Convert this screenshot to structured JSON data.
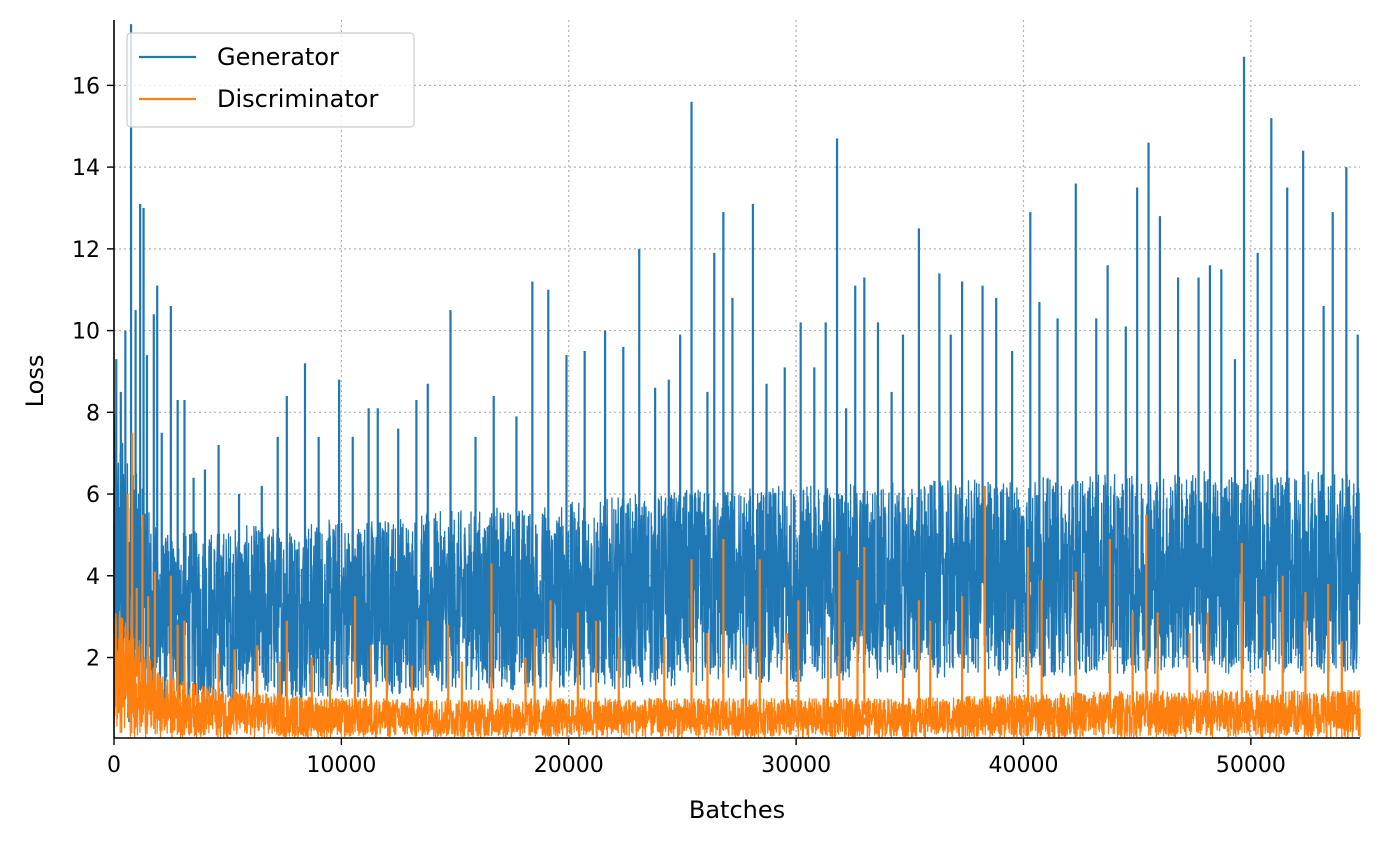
{
  "chart_data": {
    "type": "line",
    "title": "",
    "xlabel": "Batches",
    "ylabel": "Loss",
    "xlim": [
      0,
      54800
    ],
    "ylim": [
      0.03,
      17.6
    ],
    "x_ticks": [
      0,
      10000,
      20000,
      30000,
      40000,
      50000
    ],
    "y_ticks": [
      2,
      4,
      6,
      8,
      10,
      12,
      14,
      16
    ],
    "grid": true,
    "legend_position": "top-left",
    "series": [
      {
        "name": "Generator",
        "color": "#1f77b4",
        "x": [
          0,
          2000,
          5000,
          10000,
          15000,
          20000,
          25000,
          30000,
          35000,
          40000,
          45000,
          50000,
          54800
        ],
        "mean": [
          4.0,
          3.2,
          3.0,
          3.2,
          3.4,
          3.6,
          3.8,
          4.0,
          4.1,
          4.2,
          4.3,
          4.4,
          4.4
        ],
        "band_low": [
          0.2,
          0.8,
          0.9,
          1.0,
          1.2,
          1.2,
          1.3,
          1.4,
          1.5,
          1.5,
          1.6,
          1.6,
          1.6
        ],
        "band_high": [
          8.0,
          5.0,
          5.2,
          5.4,
          5.6,
          5.8,
          6.1,
          6.2,
          6.3,
          6.4,
          6.5,
          6.6,
          6.5
        ],
        "peaks": [
          {
            "x": 100,
            "y": 9.3
          },
          {
            "x": 300,
            "y": 8.5
          },
          {
            "x": 500,
            "y": 10.0
          },
          {
            "x": 750,
            "y": 17.5
          },
          {
            "x": 950,
            "y": 10.5
          },
          {
            "x": 1150,
            "y": 13.1
          },
          {
            "x": 1300,
            "y": 13.0
          },
          {
            "x": 1450,
            "y": 9.4
          },
          {
            "x": 1750,
            "y": 10.4
          },
          {
            "x": 1900,
            "y": 11.1
          },
          {
            "x": 2100,
            "y": 7.5
          },
          {
            "x": 2500,
            "y": 10.6
          },
          {
            "x": 2800,
            "y": 8.3
          },
          {
            "x": 3100,
            "y": 8.3
          },
          {
            "x": 3500,
            "y": 6.4
          },
          {
            "x": 4000,
            "y": 6.6
          },
          {
            "x": 4600,
            "y": 7.2
          },
          {
            "x": 5500,
            "y": 6.0
          },
          {
            "x": 6500,
            "y": 6.2
          },
          {
            "x": 7200,
            "y": 7.4
          },
          {
            "x": 7600,
            "y": 8.4
          },
          {
            "x": 8400,
            "y": 9.2
          },
          {
            "x": 9000,
            "y": 7.4
          },
          {
            "x": 9900,
            "y": 8.8
          },
          {
            "x": 10500,
            "y": 7.4
          },
          {
            "x": 11200,
            "y": 8.1
          },
          {
            "x": 11600,
            "y": 8.1
          },
          {
            "x": 12500,
            "y": 7.6
          },
          {
            "x": 13300,
            "y": 8.3
          },
          {
            "x": 13800,
            "y": 8.7
          },
          {
            "x": 14800,
            "y": 10.5
          },
          {
            "x": 15900,
            "y": 7.4
          },
          {
            "x": 16700,
            "y": 8.4
          },
          {
            "x": 17700,
            "y": 7.9
          },
          {
            "x": 18400,
            "y": 11.2
          },
          {
            "x": 19100,
            "y": 11.0
          },
          {
            "x": 19900,
            "y": 9.4
          },
          {
            "x": 20700,
            "y": 9.5
          },
          {
            "x": 21600,
            "y": 10.0
          },
          {
            "x": 22400,
            "y": 9.6
          },
          {
            "x": 23100,
            "y": 12.0
          },
          {
            "x": 23800,
            "y": 8.6
          },
          {
            "x": 24400,
            "y": 8.8
          },
          {
            "x": 24900,
            "y": 9.9
          },
          {
            "x": 25400,
            "y": 15.6
          },
          {
            "x": 26100,
            "y": 8.5
          },
          {
            "x": 26400,
            "y": 11.9
          },
          {
            "x": 26800,
            "y": 12.9
          },
          {
            "x": 27200,
            "y": 10.8
          },
          {
            "x": 28100,
            "y": 13.1
          },
          {
            "x": 28700,
            "y": 8.7
          },
          {
            "x": 29500,
            "y": 9.1
          },
          {
            "x": 30200,
            "y": 10.2
          },
          {
            "x": 30800,
            "y": 9.1
          },
          {
            "x": 31300,
            "y": 10.2
          },
          {
            "x": 31800,
            "y": 14.7
          },
          {
            "x": 32200,
            "y": 8.1
          },
          {
            "x": 32600,
            "y": 11.1
          },
          {
            "x": 33000,
            "y": 11.3
          },
          {
            "x": 33600,
            "y": 10.2
          },
          {
            "x": 34200,
            "y": 8.5
          },
          {
            "x": 34700,
            "y": 9.9
          },
          {
            "x": 35400,
            "y": 12.5
          },
          {
            "x": 36300,
            "y": 11.4
          },
          {
            "x": 36800,
            "y": 9.9
          },
          {
            "x": 37300,
            "y": 11.2
          },
          {
            "x": 38200,
            "y": 11.1
          },
          {
            "x": 38800,
            "y": 10.8
          },
          {
            "x": 39500,
            "y": 9.5
          },
          {
            "x": 40300,
            "y": 12.9
          },
          {
            "x": 40700,
            "y": 10.7
          },
          {
            "x": 41500,
            "y": 10.3
          },
          {
            "x": 42300,
            "y": 13.6
          },
          {
            "x": 43200,
            "y": 10.3
          },
          {
            "x": 43700,
            "y": 11.6
          },
          {
            "x": 44500,
            "y": 10.1
          },
          {
            "x": 45000,
            "y": 13.5
          },
          {
            "x": 45500,
            "y": 14.6
          },
          {
            "x": 46000,
            "y": 12.8
          },
          {
            "x": 46800,
            "y": 11.3
          },
          {
            "x": 47700,
            "y": 11.3
          },
          {
            "x": 48200,
            "y": 11.6
          },
          {
            "x": 48700,
            "y": 11.5
          },
          {
            "x": 49300,
            "y": 9.3
          },
          {
            "x": 49700,
            "y": 16.7
          },
          {
            "x": 50300,
            "y": 11.9
          },
          {
            "x": 50900,
            "y": 15.2
          },
          {
            "x": 51600,
            "y": 13.5
          },
          {
            "x": 52300,
            "y": 14.4
          },
          {
            "x": 53200,
            "y": 10.6
          },
          {
            "x": 53600,
            "y": 12.9
          },
          {
            "x": 54200,
            "y": 14.0
          },
          {
            "x": 54700,
            "y": 9.9
          }
        ]
      },
      {
        "name": "Discriminator",
        "color": "#ff7f0e",
        "x": [
          0,
          2000,
          5000,
          10000,
          15000,
          20000,
          25000,
          30000,
          35000,
          40000,
          45000,
          50000,
          54800
        ],
        "mean": [
          1.5,
          0.5,
          0.3,
          0.3,
          0.3,
          0.3,
          0.3,
          0.3,
          0.3,
          0.3,
          0.3,
          0.3,
          0.3
        ],
        "band_low": [
          0.05,
          0.05,
          0.05,
          0.05,
          0.05,
          0.05,
          0.05,
          0.05,
          0.05,
          0.05,
          0.05,
          0.05,
          0.05
        ],
        "band_high": [
          3.5,
          1.6,
          1.2,
          1.0,
          1.0,
          1.0,
          1.0,
          1.0,
          1.0,
          1.1,
          1.2,
          1.2,
          1.2
        ],
        "peaks": [
          {
            "x": 300,
            "y": 2.6
          },
          {
            "x": 600,
            "y": 6.0
          },
          {
            "x": 800,
            "y": 7.5
          },
          {
            "x": 1000,
            "y": 3.7
          },
          {
            "x": 1250,
            "y": 5.5
          },
          {
            "x": 1500,
            "y": 3.5
          },
          {
            "x": 1800,
            "y": 4.1
          },
          {
            "x": 2500,
            "y": 4.0
          },
          {
            "x": 2800,
            "y": 2.8
          },
          {
            "x": 3100,
            "y": 2.9
          },
          {
            "x": 4600,
            "y": 2.1
          },
          {
            "x": 5300,
            "y": 2.2
          },
          {
            "x": 6300,
            "y": 2.3
          },
          {
            "x": 7300,
            "y": 1.9
          },
          {
            "x": 7600,
            "y": 2.9
          },
          {
            "x": 8700,
            "y": 2.0
          },
          {
            "x": 9500,
            "y": 1.9
          },
          {
            "x": 10600,
            "y": 3.5
          },
          {
            "x": 11300,
            "y": 2.3
          },
          {
            "x": 12000,
            "y": 2.3
          },
          {
            "x": 13100,
            "y": 1.8
          },
          {
            "x": 13800,
            "y": 2.9
          },
          {
            "x": 14700,
            "y": 2.8
          },
          {
            "x": 15300,
            "y": 1.9
          },
          {
            "x": 16600,
            "y": 4.3
          },
          {
            "x": 18100,
            "y": 2.0
          },
          {
            "x": 18500,
            "y": 2.7
          },
          {
            "x": 19200,
            "y": 3.4
          },
          {
            "x": 20400,
            "y": 3.1
          },
          {
            "x": 21200,
            "y": 2.9
          },
          {
            "x": 22200,
            "y": 2.5
          },
          {
            "x": 24200,
            "y": 2.5
          },
          {
            "x": 25400,
            "y": 4.4
          },
          {
            "x": 26100,
            "y": 2.6
          },
          {
            "x": 26800,
            "y": 4.9
          },
          {
            "x": 27800,
            "y": 2.3
          },
          {
            "x": 28400,
            "y": 4.4
          },
          {
            "x": 29600,
            "y": 2.6
          },
          {
            "x": 30100,
            "y": 3.4
          },
          {
            "x": 31400,
            "y": 2.5
          },
          {
            "x": 31900,
            "y": 4.6
          },
          {
            "x": 32700,
            "y": 3.9
          },
          {
            "x": 33000,
            "y": 4.7
          },
          {
            "x": 34700,
            "y": 2.2
          },
          {
            "x": 35400,
            "y": 3.4
          },
          {
            "x": 35900,
            "y": 2.9
          },
          {
            "x": 37300,
            "y": 3.5
          },
          {
            "x": 38300,
            "y": 6.2
          },
          {
            "x": 39500,
            "y": 2.7
          },
          {
            "x": 40200,
            "y": 4.7
          },
          {
            "x": 40800,
            "y": 3.9
          },
          {
            "x": 42300,
            "y": 4.1
          },
          {
            "x": 43800,
            "y": 4.9
          },
          {
            "x": 44800,
            "y": 3.1
          },
          {
            "x": 45400,
            "y": 5.5
          },
          {
            "x": 45900,
            "y": 3.1
          },
          {
            "x": 47300,
            "y": 2.6
          },
          {
            "x": 48100,
            "y": 3.1
          },
          {
            "x": 49600,
            "y": 4.8
          },
          {
            "x": 50600,
            "y": 3.5
          },
          {
            "x": 51400,
            "y": 4.0
          },
          {
            "x": 52400,
            "y": 3.6
          },
          {
            "x": 53400,
            "y": 3.8
          },
          {
            "x": 54000,
            "y": 2.4
          }
        ]
      }
    ]
  }
}
